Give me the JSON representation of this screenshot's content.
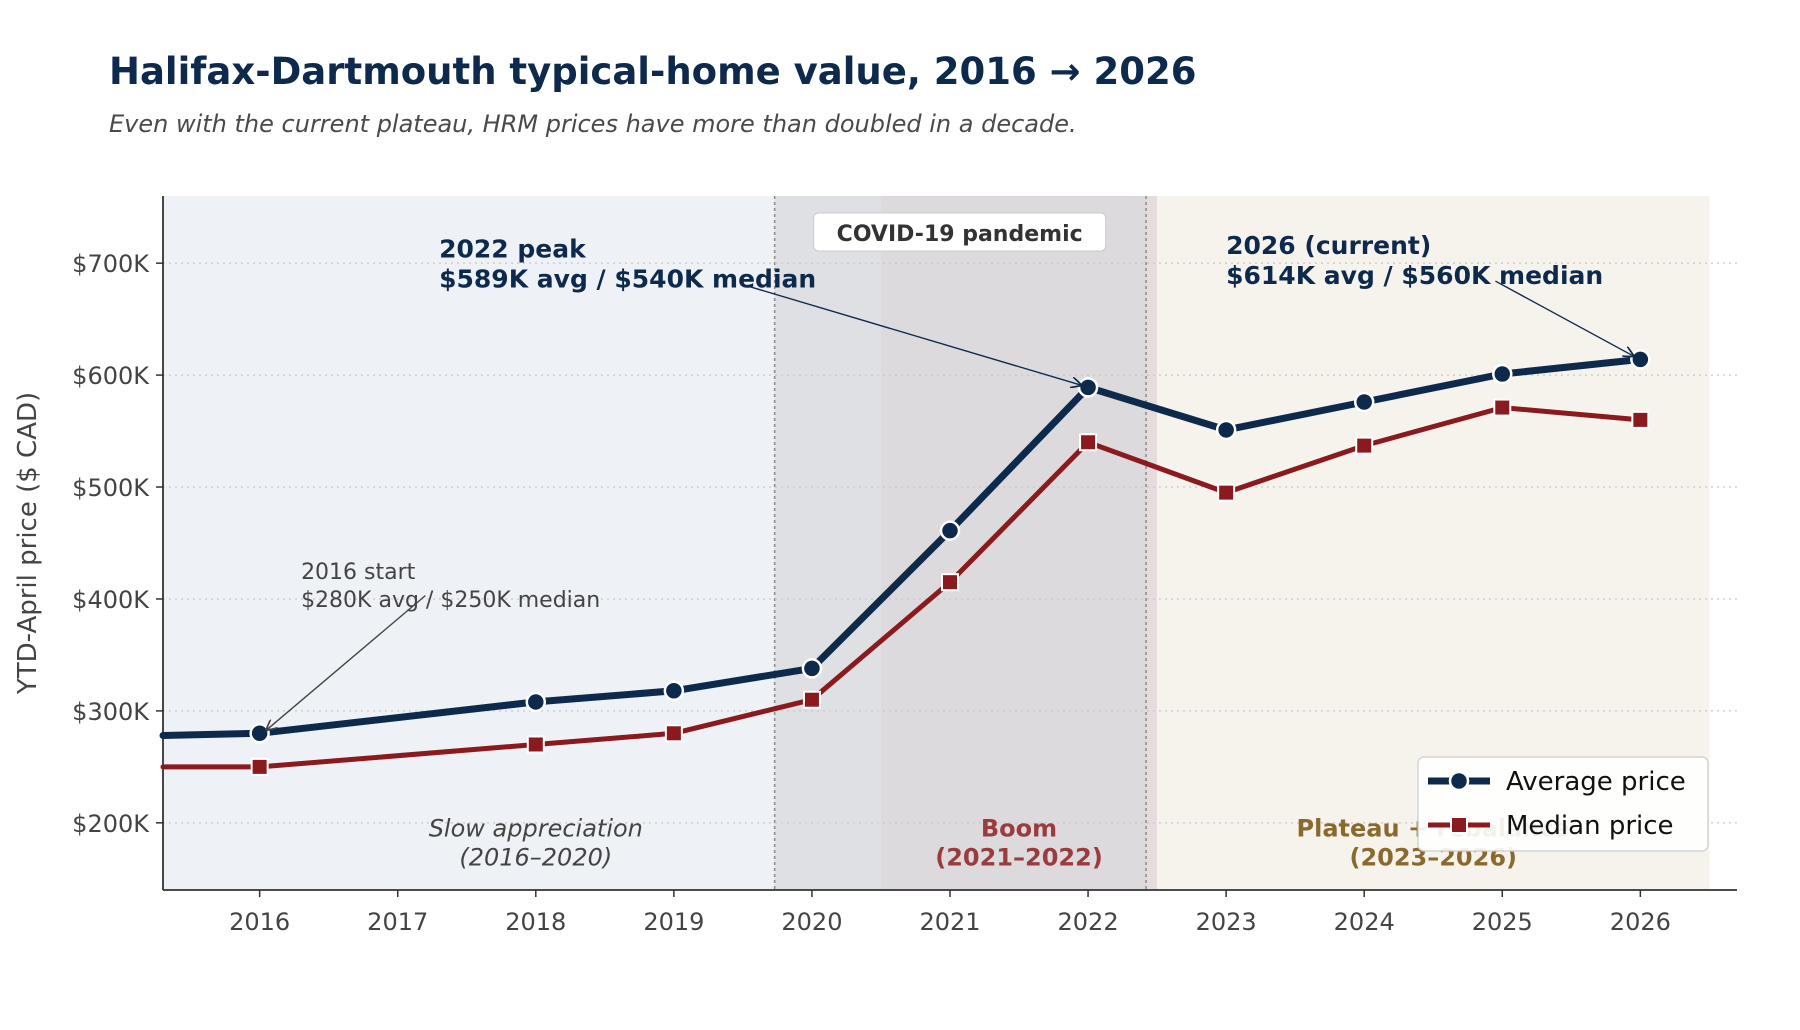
{
  "title": "Halifax-Dartmouth typical-home value, 2016 → 2026",
  "subtitle": "Even with the current plateau, HRM prices have more than doubled in a decade.",
  "colors": {
    "average": "#0d2a4d",
    "median": "#8b1a1e",
    "covid_band": "#d8dadc",
    "slow_band": "#eef1f5",
    "boom_band": "#e6dcdd",
    "plateau_band": "#f6f2ec",
    "boom_label": "#9a3b3e",
    "plateau_label": "#8a6a2c"
  },
  "chart_data": {
    "type": "line",
    "ylabel": "YTD-April price ($ CAD)",
    "xlabel": "",
    "xlim": [
      2015.3,
      2026.7
    ],
    "ylim": [
      140000,
      760000
    ],
    "x_ticks": [
      2016,
      2017,
      2018,
      2019,
      2020,
      2021,
      2022,
      2023,
      2024,
      2025,
      2026
    ],
    "x_tick_labels": [
      "2016",
      "2017",
      "2018",
      "2019",
      "2020",
      "2021",
      "2022",
      "2023",
      "2024",
      "2025",
      "2026"
    ],
    "y_ticks": [
      200000,
      300000,
      400000,
      500000,
      600000,
      700000
    ],
    "y_tick_labels": [
      "$200K",
      "$300K",
      "$400K",
      "$500K",
      "$600K",
      "$700K"
    ],
    "grid": "horizontal dotted",
    "legend_position": "bottom-right",
    "series": [
      {
        "name": "Average price",
        "marker": "circle",
        "points": [
          [
            2015.3,
            278000
          ],
          [
            2016,
            280000
          ],
          [
            2018,
            308000
          ],
          [
            2019,
            318000
          ],
          [
            2020,
            338000
          ],
          [
            2021,
            461000
          ],
          [
            2022,
            589000
          ],
          [
            2023,
            551000
          ],
          [
            2024,
            576000
          ],
          [
            2025,
            601000
          ],
          [
            2026,
            614000
          ]
        ]
      },
      {
        "name": "Median price",
        "marker": "square",
        "points": [
          [
            2015.3,
            250000
          ],
          [
            2016,
            250000
          ],
          [
            2018,
            270000
          ],
          [
            2019,
            280000
          ],
          [
            2020,
            310000
          ],
          [
            2021,
            415000
          ],
          [
            2022,
            540000
          ],
          [
            2023,
            495000
          ],
          [
            2024,
            537000
          ],
          [
            2025,
            571000
          ],
          [
            2026,
            560000
          ]
        ]
      }
    ],
    "shaded_periods": [
      {
        "from": 2015.3,
        "to": 2020.5,
        "color_key": "slow_band"
      },
      {
        "from": 2020.5,
        "to": 2022.5,
        "color_key": "boom_band"
      },
      {
        "from": 2022.5,
        "to": 2026.5,
        "color_key": "plateau_band"
      },
      {
        "from": 2019.73,
        "to": 2022.42,
        "color_key": "covid_band",
        "dotted_edges": true
      }
    ],
    "period_labels": [
      {
        "lines": [
          "Slow appreciation",
          "(2016–2020)"
        ],
        "x": 2018,
        "y": 188000,
        "style": "italic",
        "color_key": null
      },
      {
        "lines": [
          "Boom",
          "(2021–2022)"
        ],
        "x": 2021.5,
        "y": 188000,
        "style": "bold",
        "color_key": "boom_label"
      },
      {
        "lines": [
          "Plateau + rebalance",
          "(2023–2026)"
        ],
        "x": 2024.5,
        "y": 188000,
        "style": "bold",
        "color_key": "plateau_label"
      }
    ],
    "band_label": {
      "text": "COVID-19 pandemic",
      "x": 2021.07,
      "y": 727000
    },
    "annotations": [
      {
        "lines": [
          "2016 start",
          "$280K avg / $250K median"
        ],
        "style": "small",
        "text_x": 2016.3,
        "text_y": 418000,
        "arrow_from": [
          2017.2,
          403000
        ],
        "arrow_to": [
          2016.05,
          283000
        ]
      },
      {
        "lines": [
          "2022 peak",
          "$589K avg / $540K median"
        ],
        "style": "bold",
        "text_x": 2017.3,
        "text_y": 705000,
        "arrow_from": [
          2019.55,
          679000
        ],
        "arrow_to": [
          2021.95,
          591000
        ]
      },
      {
        "lines": [
          "2026 (current)",
          "$614K avg / $560K median"
        ],
        "style": "bold",
        "text_x": 2023.0,
        "text_y": 708000,
        "arrow_from": [
          2024.95,
          684000
        ],
        "arrow_to": [
          2025.95,
          617000
        ]
      }
    ]
  }
}
